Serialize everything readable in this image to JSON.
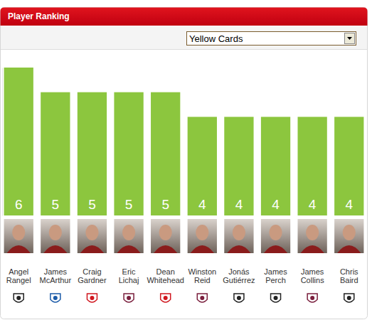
{
  "chart_data": {
    "type": "bar",
    "title": "Player Ranking",
    "ylabel": "Yellow Cards",
    "categories": [
      "Angel Rangel",
      "James McArthur",
      "Craig Gardner",
      "Eric Lichaj",
      "Dean Whitehead",
      "Winston Reid",
      "Jonás Gutiérrez",
      "James Perch",
      "James Collins",
      "Chris Baird"
    ],
    "values": [
      6,
      5,
      5,
      5,
      5,
      4,
      4,
      4,
      4,
      4
    ],
    "color": "#8cc63e",
    "ylim": [
      0,
      6
    ],
    "data_labels": true,
    "tick_labels": false,
    "grid": false
  }
}
